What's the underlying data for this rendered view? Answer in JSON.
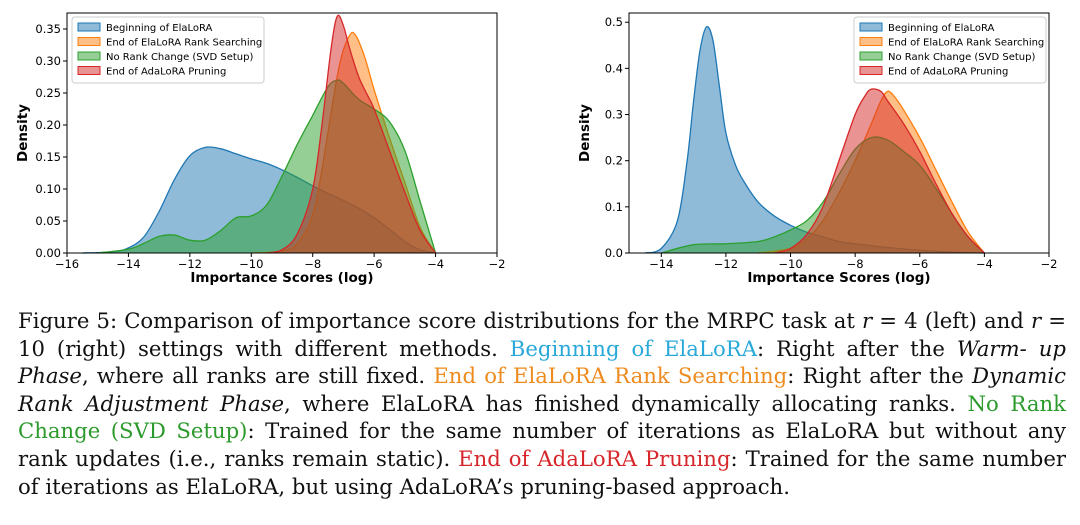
{
  "chart_data": [
    {
      "type": "area",
      "panel": "left",
      "xlabel": "Importance Scores (log)",
      "ylabel": "Density",
      "xlim": [
        -16,
        -2
      ],
      "ylim": [
        0,
        0.375
      ],
      "xticks": [
        -16,
        -14,
        -12,
        -10,
        -8,
        -6,
        -4,
        -2
      ],
      "xtick_labels": [
        "−16",
        "−14",
        "−12",
        "−10",
        "−8",
        "−6",
        "−4",
        "−2"
      ],
      "yticks": [
        0,
        0.05,
        0.1,
        0.15,
        0.2,
        0.25,
        0.3,
        0.35
      ],
      "ytick_labels": [
        "0.00",
        "0.05",
        "0.10",
        "0.15",
        "0.20",
        "0.25",
        "0.30",
        "0.35"
      ],
      "legend_position": "top-left",
      "series": [
        {
          "name": "Beginning of ElaLoRA",
          "color": "#1f77b4",
          "x": [
            -15.5,
            -14.5,
            -14,
            -13.5,
            -13,
            -12.5,
            -12,
            -11.5,
            -11,
            -10.5,
            -10,
            -9.5,
            -9,
            -8.5,
            -8,
            -7.5,
            -7,
            -6.5,
            -6,
            -5.5,
            -5,
            -4.5,
            -4
          ],
          "y": [
            0.0,
            0.002,
            0.008,
            0.025,
            0.065,
            0.115,
            0.152,
            0.165,
            0.163,
            0.155,
            0.147,
            0.14,
            0.13,
            0.118,
            0.105,
            0.093,
            0.082,
            0.07,
            0.055,
            0.037,
            0.018,
            0.005,
            0.0
          ]
        },
        {
          "name": "End of ElaLoRA Rank Searching",
          "color": "#ff7f0e",
          "x": [
            -10,
            -9,
            -8.5,
            -8,
            -7.7,
            -7.4,
            -7.1,
            -6.8,
            -6.6,
            -6.3,
            -6,
            -5.5,
            -5,
            -4.5,
            -4
          ],
          "y": [
            0.0,
            0.003,
            0.015,
            0.06,
            0.13,
            0.22,
            0.3,
            0.34,
            0.34,
            0.305,
            0.255,
            0.18,
            0.11,
            0.04,
            0.0
          ]
        },
        {
          "name": "No Rank Change (SVD Setup)",
          "color": "#2ca02c",
          "x": [
            -15,
            -14,
            -13.5,
            -13,
            -12.5,
            -12,
            -11.5,
            -11,
            -10.5,
            -10,
            -9.5,
            -9,
            -8.5,
            -8,
            -7.5,
            -7.2,
            -7,
            -6.5,
            -6,
            -5.5,
            -5,
            -4.5,
            -4
          ],
          "y": [
            0.0,
            0.006,
            0.015,
            0.026,
            0.028,
            0.02,
            0.02,
            0.035,
            0.055,
            0.058,
            0.075,
            0.12,
            0.17,
            0.215,
            0.26,
            0.27,
            0.265,
            0.24,
            0.225,
            0.205,
            0.16,
            0.08,
            0.0
          ]
        },
        {
          "name": "End of AdaLoRA Pruning",
          "color": "#d62728",
          "x": [
            -9.5,
            -9,
            -8.5,
            -8,
            -7.7,
            -7.4,
            -7.2,
            -7.0,
            -6.8,
            -6.5,
            -6.2,
            -6,
            -5.5,
            -5,
            -4.5,
            -4
          ],
          "y": [
            0.0,
            0.005,
            0.03,
            0.1,
            0.2,
            0.32,
            0.37,
            0.355,
            0.32,
            0.275,
            0.245,
            0.225,
            0.16,
            0.095,
            0.035,
            0.0
          ]
        }
      ]
    },
    {
      "type": "area",
      "panel": "right",
      "xlabel": "Importance Scores (log)",
      "ylabel": "Density",
      "xlim": [
        -15,
        -2
      ],
      "ylim": [
        0,
        0.52
      ],
      "xticks": [
        -14,
        -12,
        -10,
        -8,
        -6,
        -4,
        -2
      ],
      "xtick_labels": [
        "−14",
        "−12",
        "−10",
        "−8",
        "−6",
        "−4",
        "−2"
      ],
      "yticks": [
        0,
        0.1,
        0.2,
        0.3,
        0.4,
        0.5
      ],
      "ytick_labels": [
        "0.0",
        "0.1",
        "0.2",
        "0.3",
        "0.4",
        "0.5"
      ],
      "legend_position": "top-right",
      "series": [
        {
          "name": "Beginning of ElaLoRA",
          "color": "#1f77b4",
          "x": [
            -14.5,
            -14,
            -13.5,
            -13.2,
            -13,
            -12.8,
            -12.6,
            -12.4,
            -12.2,
            -12,
            -11.7,
            -11.4,
            -11,
            -10.5,
            -10,
            -9.5,
            -9,
            -8.5,
            -8,
            -7,
            -6,
            -5,
            -4
          ],
          "y": [
            0.0,
            0.01,
            0.07,
            0.2,
            0.33,
            0.44,
            0.49,
            0.46,
            0.36,
            0.26,
            0.19,
            0.15,
            0.11,
            0.08,
            0.06,
            0.045,
            0.035,
            0.025,
            0.02,
            0.012,
            0.006,
            0.002,
            0.0
          ]
        },
        {
          "name": "End of ElaLoRA Rank Searching",
          "color": "#ff7f0e",
          "x": [
            -11,
            -10,
            -9.5,
            -9,
            -8.5,
            -8,
            -7.5,
            -7.2,
            -7.0,
            -6.8,
            -6.5,
            -6,
            -5.5,
            -5,
            -4.5,
            -4
          ],
          "y": [
            0.0,
            0.01,
            0.03,
            0.07,
            0.13,
            0.2,
            0.28,
            0.33,
            0.35,
            0.34,
            0.31,
            0.25,
            0.18,
            0.11,
            0.045,
            0.0
          ]
        },
        {
          "name": "No Rank Change (SVD Setup)",
          "color": "#2ca02c",
          "x": [
            -14,
            -13,
            -12,
            -11,
            -10.5,
            -10,
            -9.5,
            -9,
            -8.5,
            -8,
            -7.5,
            -7,
            -6.5,
            -6,
            -5.5,
            -5,
            -4.5,
            -4
          ],
          "y": [
            0.0,
            0.018,
            0.02,
            0.025,
            0.035,
            0.05,
            0.07,
            0.11,
            0.17,
            0.225,
            0.25,
            0.245,
            0.22,
            0.19,
            0.14,
            0.085,
            0.035,
            0.0
          ]
        },
        {
          "name": "End of AdaLoRA Pruning",
          "color": "#d62728",
          "x": [
            -10.5,
            -10,
            -9.5,
            -9,
            -8.5,
            -8,
            -7.7,
            -7.5,
            -7.2,
            -7,
            -6.5,
            -6,
            -5.5,
            -5,
            -4.5,
            -4
          ],
          "y": [
            0.0,
            0.01,
            0.04,
            0.1,
            0.2,
            0.3,
            0.34,
            0.355,
            0.35,
            0.33,
            0.28,
            0.22,
            0.15,
            0.085,
            0.035,
            0.0
          ]
        }
      ]
    }
  ],
  "caption": {
    "lines": [
      [
        {
          "t": "Figure 5: Comparison of importance score distributions for the MRPC task at "
        },
        {
          "t": "r",
          "cls": "math"
        },
        {
          "t": " = 4 (left) and"
        }
      ],
      [
        {
          "t": "r",
          "cls": "math"
        },
        {
          "t": " = 10 (right) settings with different methods. "
        },
        {
          "t": "Beginning of ElaLoRA",
          "cls": "lg-blue"
        },
        {
          "t": ": Right after the "
        },
        {
          "t": "Warm-",
          "cls": "it"
        }
      ],
      [
        {
          "t": "up Phase",
          "cls": "it"
        },
        {
          "t": ", where all ranks are still fixed. "
        },
        {
          "t": "End of ElaLoRA Rank Searching",
          "cls": "lg-orange"
        },
        {
          "t": ": Right after the"
        }
      ],
      [
        {
          "t": "Dynamic Rank Adjustment Phase",
          "cls": "it"
        },
        {
          "t": ", where ElaLoRA has finished dynamically allocating ranks."
        }
      ],
      [
        {
          "t": "No Rank Change (SVD Setup)",
          "cls": "lg-green"
        },
        {
          "t": ": Trained for the same number of iterations as ElaLoRA but"
        }
      ],
      [
        {
          "t": "without any rank updates (i.e., ranks remain static). "
        },
        {
          "t": "End of AdaLoRA Pruning",
          "cls": "lg-red"
        },
        {
          "t": ": Trained for"
        }
      ],
      [
        {
          "t": "the same number of iterations as ElaLoRA, but using AdaLoRA’s pruning-based approach."
        }
      ]
    ]
  }
}
